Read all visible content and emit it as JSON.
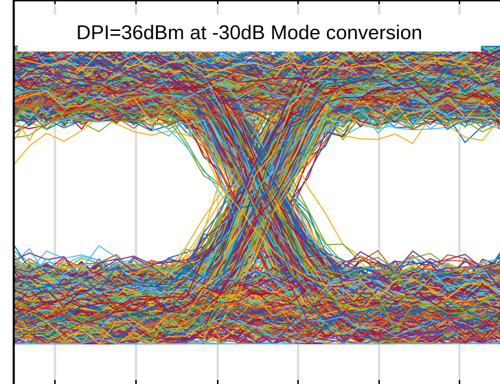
{
  "chart_data": {
    "type": "line",
    "title": "DPI=36dBm at -30dB Mode conversion",
    "xlabel": "",
    "ylabel": "",
    "grid": true,
    "legend": "none",
    "colors": [
      "#0072BD",
      "#D95319",
      "#EDB120",
      "#7E2F8E",
      "#77AC30",
      "#4DBEEE",
      "#A2142F"
    ],
    "series": [
      {
        "x": [
          0,
          0.5,
          1,
          1.5,
          2
        ],
        "values": [
          1,
          0.72,
          1,
          0.72,
          1
        ]
      },
      {
        "x": [
          0,
          0.5,
          1,
          1.5,
          2
        ],
        "values": [
          -1,
          -0.72,
          -1,
          -0.72,
          -1
        ]
      },
      {
        "x": [
          0,
          0.5,
          1,
          1.5,
          2
        ],
        "values": [
          1,
          0.0,
          -1,
          0.0,
          1
        ]
      },
      {
        "x": [
          0,
          0.5,
          1,
          1.5,
          2
        ],
        "values": [
          -1,
          0.0,
          1,
          0.0,
          -1
        ]
      }
    ]
  }
}
